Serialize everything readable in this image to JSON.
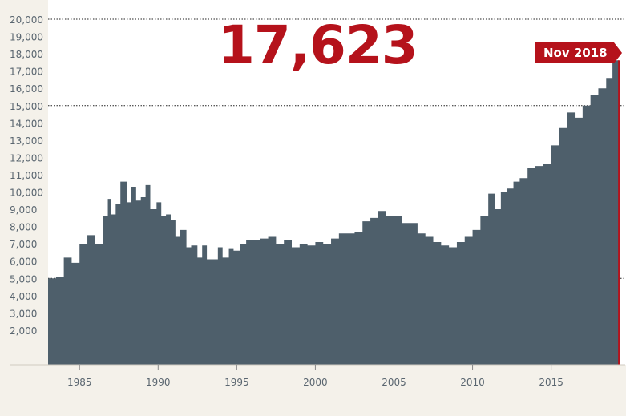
{
  "headline": "17,623",
  "latest_label": "Nov 2018",
  "colors": {
    "area": "#4e5f6b",
    "accent": "#b5121b",
    "bg": "#f4f1ea",
    "plot_bg": "#ffffff",
    "axis_text": "#5a6670"
  },
  "chart_data": {
    "type": "area",
    "title": "",
    "xlabel": "",
    "ylabel": "",
    "xlim": [
      1983,
      2019.2
    ],
    "ylim": [
      0,
      20000
    ],
    "yticks": [
      "2,000",
      "3,000",
      "4,000",
      "5,000",
      "6,000",
      "7,000",
      "8,000",
      "9,000",
      "10,000",
      "11,000",
      "12,000",
      "13,000",
      "14,000",
      "15,000",
      "16,000",
      "17,000",
      "18,000",
      "19,000",
      "20,000"
    ],
    "ytick_values": [
      2000,
      3000,
      4000,
      5000,
      6000,
      7000,
      8000,
      9000,
      10000,
      11000,
      12000,
      13000,
      14000,
      15000,
      16000,
      17000,
      18000,
      19000,
      20000
    ],
    "xticks": [
      "1985",
      "1990",
      "1995",
      "2000",
      "2005",
      "2010",
      "2015"
    ],
    "xtick_values": [
      1985,
      1990,
      1995,
      2000,
      2005,
      2010,
      2015
    ],
    "dotted_gridlines": [
      5000,
      10000,
      15000,
      20000
    ],
    "x": [
      1983.0,
      1983.5,
      1984.0,
      1984.5,
      1985.0,
      1985.5,
      1986.0,
      1986.5,
      1986.8,
      1987.0,
      1987.3,
      1987.6,
      1988.0,
      1988.3,
      1988.6,
      1988.9,
      1989.2,
      1989.5,
      1989.9,
      1990.2,
      1990.5,
      1990.8,
      1991.1,
      1991.4,
      1991.8,
      1992.1,
      1992.5,
      1992.8,
      1993.1,
      1993.4,
      1993.8,
      1994.1,
      1994.5,
      1994.8,
      1995.2,
      1995.6,
      1996.0,
      1996.5,
      1997.0,
      1997.5,
      1998.0,
      1998.5,
      1999.0,
      1999.5,
      2000.0,
      2000.5,
      2001.0,
      2001.5,
      2002.0,
      2002.5,
      2003.0,
      2003.5,
      2004.0,
      2004.5,
      2005.0,
      2005.5,
      2006.0,
      2006.5,
      2007.0,
      2007.5,
      2008.0,
      2008.5,
      2009.0,
      2009.5,
      2010.0,
      2010.5,
      2011.0,
      2011.4,
      2011.8,
      2012.2,
      2012.6,
      2013.0,
      2013.5,
      2014.0,
      2014.5,
      2015.0,
      2015.5,
      2016.0,
      2016.5,
      2017.0,
      2017.5,
      2018.0,
      2018.5,
      2018.9
    ],
    "values": [
      5000,
      5100,
      6200,
      5900,
      7000,
      7500,
      7000,
      8600,
      9600,
      8700,
      9300,
      10600,
      9400,
      10300,
      9500,
      9700,
      10400,
      9000,
      9400,
      8600,
      8700,
      8400,
      7400,
      7800,
      6800,
      6900,
      6200,
      6900,
      6100,
      6100,
      6800,
      6200,
      6700,
      6600,
      7000,
      7200,
      7200,
      7300,
      7400,
      7000,
      7200,
      6800,
      7000,
      6900,
      7100,
      7000,
      7300,
      7600,
      7600,
      7700,
      8300,
      8500,
      8900,
      8600,
      8600,
      8200,
      8200,
      7600,
      7400,
      7100,
      6900,
      6800,
      7100,
      7400,
      7800,
      8600,
      9900,
      9000,
      10000,
      10200,
      10600,
      10800,
      11400,
      11500,
      11600,
      12700,
      13700,
      14600,
      14300,
      15000,
      15600,
      16000,
      16600,
      17623
    ]
  }
}
